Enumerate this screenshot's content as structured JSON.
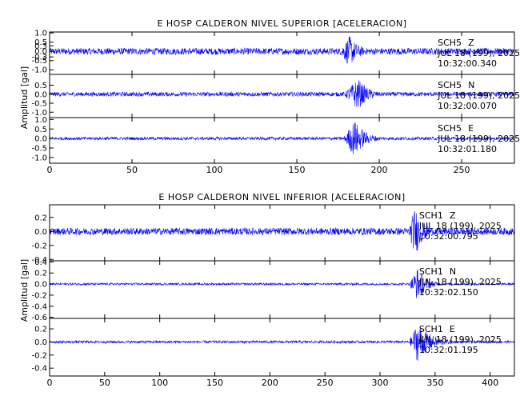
{
  "chart_data": [
    {
      "type": "line",
      "title": "E HOSP CALDERON NIVEL SUPERIOR [ACELERACION]",
      "ylabel": "Amplitud [gal]",
      "xlim": [
        0,
        282
      ],
      "xticks": [
        0,
        50,
        100,
        150,
        200,
        250
      ],
      "traces": [
        {
          "station": "SCH5",
          "component": "Z",
          "date": "JUL 18 (199), 2025",
          "time": "10:32:00.340",
          "ylim": [
            -1.25,
            1.05
          ],
          "yticks": [
            "1.0",
            "0.5",
            "0.3",
            "0.0",
            "-0.3",
            "-0.5",
            "-1.0"
          ],
          "ytick_values": [
            1.0,
            0.5,
            0.3,
            0.0,
            -0.3,
            -0.5,
            -1.0
          ],
          "noise_amplitude": 0.18,
          "event_start": 175,
          "event_peak": 182,
          "event_end": 192,
          "peak_amplitude": 0.85
        },
        {
          "station": "SCH5",
          "component": "N",
          "date": "JUL 18 (199), 2025",
          "time": "10:32:00.070",
          "ylim": [
            -1.3,
            1.1
          ],
          "yticks": [
            "0.5",
            "0.0",
            "-0.5",
            "-1.0"
          ],
          "ytick_values": [
            0.5,
            0.0,
            -0.5,
            -1.0
          ],
          "noise_amplitude": 0.12,
          "event_start": 178,
          "event_peak": 187,
          "event_end": 198,
          "peak_amplitude": 0.9
        },
        {
          "station": "SCH5",
          "component": "E",
          "date": "JUL 18 (199), 2025",
          "time": "10:32:01.180",
          "ylim": [
            -1.3,
            1.1
          ],
          "yticks": [
            "1.0",
            "0.5",
            "0.0",
            "-0.5",
            "-1.0"
          ],
          "ytick_values": [
            1.0,
            0.5,
            0.0,
            -0.5,
            -1.0
          ],
          "noise_amplitude": 0.08,
          "event_start": 178,
          "event_peak": 185,
          "event_end": 196,
          "peak_amplitude": 1.0
        }
      ]
    },
    {
      "type": "line",
      "title": "E HOSP CALDERON NIVEL INFERIOR [ACELERACION]",
      "ylabel": "Amplitud [gal]",
      "xlim": [
        0,
        422
      ],
      "xticks": [
        0,
        50,
        100,
        150,
        200,
        250,
        300,
        350,
        400
      ],
      "traces": [
        {
          "station": "SCH1",
          "component": "Z",
          "date": "JUL 18 (199), 2025",
          "time": "10:32:00.795",
          "ylim": [
            -0.42,
            0.38
          ],
          "yticks": [
            "0.2",
            "0.0",
            "-0.2",
            "-0.4"
          ],
          "ytick_values": [
            0.2,
            0.0,
            -0.2,
            -0.4
          ],
          "noise_amplitude": 0.05,
          "event_start": 325,
          "event_peak": 332,
          "event_end": 345,
          "peak_amplitude": 0.35
        },
        {
          "station": "SCH1",
          "component": "N",
          "date": "JUL 18 (199), 2025",
          "time": "10:32:02.150",
          "ylim": [
            -0.62,
            0.42
          ],
          "yticks": [
            "0.4",
            "0.2",
            "0.0",
            "-0.2",
            "-0.4",
            "-0.6"
          ],
          "ytick_values": [
            0.4,
            0.2,
            0.0,
            -0.2,
            -0.4,
            -0.6
          ],
          "noise_amplitude": 0.02,
          "event_start": 326,
          "event_peak": 334,
          "event_end": 348,
          "peak_amplitude": 0.3
        },
        {
          "station": "SCH1",
          "component": "E",
          "date": "JUL 18 (199), 2025",
          "time": "10:32:01.195",
          "ylim": [
            -0.52,
            0.36
          ],
          "yticks": [
            "0.2",
            "0.0",
            "-0.2",
            "-0.4"
          ],
          "ytick_values": [
            0.2,
            0.0,
            -0.2,
            -0.4
          ],
          "noise_amplitude": 0.02,
          "event_start": 326,
          "event_peak": 334,
          "event_end": 355,
          "peak_amplitude": 0.3
        }
      ]
    }
  ]
}
